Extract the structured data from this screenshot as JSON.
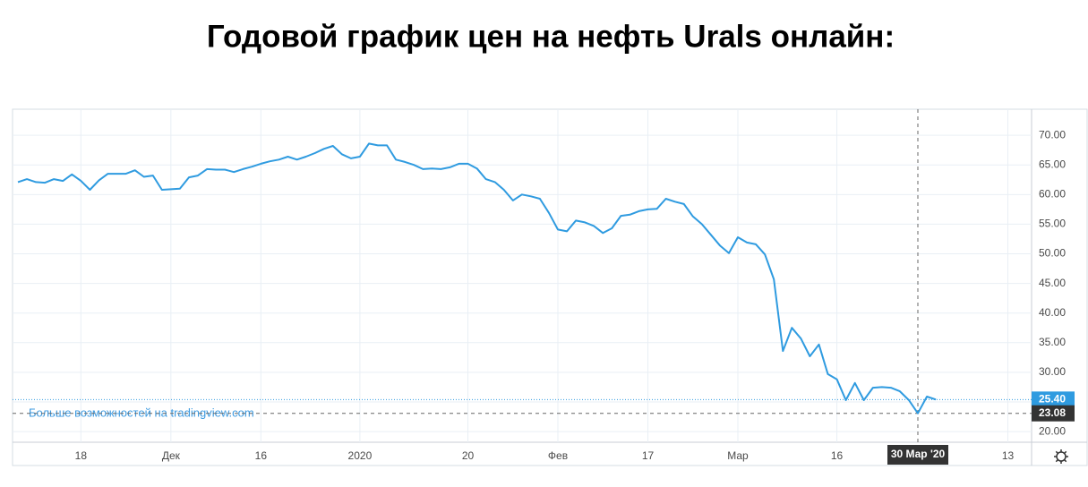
{
  "chart_data": {
    "type": "line",
    "title": "Годовой график цен на нефть Urals онлайн:",
    "categories": [
      null,
      null,
      null,
      null,
      null,
      null,
      null,
      "18",
      null,
      null,
      null,
      null,
      null,
      null,
      null,
      null,
      null,
      "Дек",
      null,
      null,
      null,
      null,
      null,
      null,
      null,
      null,
      null,
      "16",
      null,
      null,
      null,
      null,
      null,
      null,
      null,
      null,
      null,
      null,
      "2020",
      null,
      null,
      null,
      null,
      null,
      null,
      null,
      null,
      null,
      null,
      null,
      "20",
      null,
      null,
      null,
      null,
      null,
      null,
      null,
      null,
      null,
      "Фев",
      null,
      null,
      null,
      null,
      null,
      null,
      null,
      null,
      null,
      "17",
      null,
      null,
      null,
      null,
      null,
      null,
      null,
      null,
      null,
      "Мар",
      null,
      null,
      null,
      null,
      null,
      null,
      null,
      null,
      null,
      null,
      "16",
      null,
      null,
      null,
      null,
      null,
      null,
      null,
      null,
      null,
      null,
      null,
      null,
      null,
      null,
      null,
      null,
      null,
      null,
      "13",
      null,
      null
    ],
    "series": [
      {
        "color": "#2f9be0",
        "values": [
          62.1,
          62.6,
          62.1,
          62.0,
          62.6,
          62.3,
          63.4,
          62.3,
          60.8,
          62.4,
          63.5,
          63.5,
          63.5,
          64.1,
          63.0,
          63.2,
          60.8,
          60.9,
          61.0,
          62.9,
          63.2,
          64.3,
          64.2,
          64.2,
          63.8,
          64.3,
          64.7,
          65.2,
          65.6,
          65.9,
          66.4,
          65.9,
          66.4,
          67.0,
          67.7,
          68.2,
          66.8,
          66.1,
          66.4,
          68.6,
          68.3,
          68.3,
          65.9,
          65.5,
          65.0,
          64.3,
          64.4,
          64.3,
          64.6,
          65.2,
          65.2,
          64.4,
          62.6,
          62.1,
          60.8,
          59.0,
          60.0,
          59.7,
          59.3,
          56.9,
          54.1,
          53.8,
          55.6,
          55.3,
          54.7,
          53.5,
          54.3,
          56.4,
          56.6,
          57.2,
          57.5,
          57.6,
          59.3,
          58.8,
          58.4,
          56.3,
          55.0,
          53.2,
          51.4,
          50.1,
          52.8,
          51.9,
          51.6,
          49.9,
          45.7,
          33.6,
          37.5,
          35.7,
          32.7,
          34.7,
          29.7,
          28.8,
          25.3,
          28.2,
          25.3,
          27.4,
          27.5,
          27.4,
          26.8,
          25.3,
          23.08,
          25.9,
          25.4,
          null,
          null,
          null,
          null,
          null,
          null,
          null,
          null,
          null,
          null
        ]
      }
    ],
    "ylim": [
      18.2,
      74.4
    ],
    "yticks": [
      {
        "value": 20,
        "label": "20.00"
      },
      {
        "value": 25,
        "label": "25.00"
      },
      {
        "value": 30,
        "label": "30.00"
      },
      {
        "value": 35,
        "label": "35.00"
      },
      {
        "value": 40,
        "label": "40.00"
      },
      {
        "value": 45,
        "label": "45.00"
      },
      {
        "value": 50,
        "label": "50.00"
      },
      {
        "value": 55,
        "label": "55.00"
      },
      {
        "value": 60,
        "label": "60.00"
      },
      {
        "value": 65,
        "label": "65.00"
      },
      {
        "value": 70,
        "label": "70.00"
      }
    ],
    "grid": true,
    "last_price": {
      "value": 25.4,
      "label": "25.40"
    },
    "crosshair_y": 23.08,
    "crosshair_x_label": "30 Мар '20",
    "watermark": "Больше возможностей на tradingview.com"
  }
}
